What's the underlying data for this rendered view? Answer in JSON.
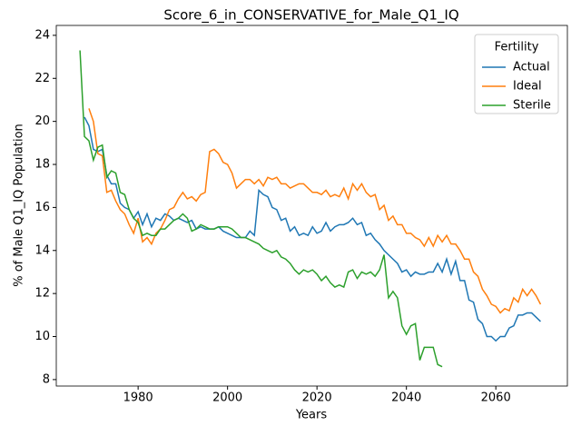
{
  "chart_data": {
    "type": "line",
    "title": "Score_6_in_CONSERVATIVE_for_Male_Q1_IQ",
    "x_label": "Years",
    "y_label": "% of Male Q1_IQ Population",
    "legend_title": "Fertility",
    "legend_position": "upper right",
    "x": [
      1967,
      1968,
      1969,
      1970,
      1971,
      1972,
      1973,
      1974,
      1975,
      1976,
      1977,
      1978,
      1979,
      1980,
      1981,
      1982,
      1983,
      1984,
      1985,
      1986,
      1987,
      1988,
      1989,
      1990,
      1991,
      1992,
      1993,
      1994,
      1995,
      1996,
      1997,
      1998,
      1999,
      2000,
      2001,
      2002,
      2003,
      2004,
      2005,
      2006,
      2007,
      2008,
      2009,
      2010,
      2011,
      2012,
      2013,
      2014,
      2015,
      2016,
      2017,
      2018,
      2019,
      2020,
      2021,
      2022,
      2023,
      2024,
      2025,
      2026,
      2027,
      2028,
      2029,
      2030,
      2031,
      2032,
      2033,
      2034,
      2035,
      2036,
      2037,
      2038,
      2039,
      2040,
      2041,
      2042,
      2043,
      2044,
      2045,
      2046,
      2047,
      2048,
      2049,
      2050,
      2051,
      2052,
      2053,
      2054,
      2055,
      2056,
      2057,
      2058,
      2059,
      2060,
      2061,
      2062,
      2063,
      2064,
      2065,
      2066,
      2067,
      2068,
      2069,
      2070
    ],
    "series": [
      {
        "name": "Actual",
        "color": "#1f77b4",
        "values": [
          null,
          20.2,
          19.8,
          18.7,
          18.6,
          18.7,
          17.5,
          17.1,
          17.1,
          16.2,
          16.0,
          15.9,
          15.5,
          15.8,
          15.2,
          15.7,
          15.1,
          15.5,
          15.4,
          15.7,
          15.6,
          15.4,
          15.5,
          15.4,
          15.3,
          15.4,
          15.0,
          15.1,
          15.0,
          15.0,
          15.0,
          15.1,
          14.9,
          14.8,
          14.7,
          14.6,
          14.6,
          14.6,
          14.9,
          14.7,
          16.8,
          16.6,
          16.5,
          16.0,
          15.9,
          15.4,
          15.5,
          14.9,
          15.1,
          14.7,
          14.8,
          14.7,
          15.1,
          14.8,
          14.9,
          15.3,
          14.9,
          15.1,
          15.2,
          15.2,
          15.3,
          15.5,
          15.2,
          15.3,
          14.7,
          14.8,
          14.5,
          14.3,
          14.0,
          13.8,
          13.6,
          13.4,
          13.0,
          13.1,
          12.8,
          13.0,
          12.9,
          12.9,
          13.0,
          13.0,
          13.4,
          13.0,
          13.6,
          12.9,
          13.5,
          12.6,
          12.6,
          11.7,
          11.6,
          10.8,
          10.6,
          10.0,
          10.0,
          9.8,
          10.0,
          10.0,
          10.4,
          10.5,
          11.0,
          11.0,
          11.1,
          11.1,
          10.9,
          10.7
        ]
      },
      {
        "name": "Ideal",
        "color": "#ff7f0e",
        "values": [
          null,
          null,
          20.6,
          20.0,
          18.5,
          18.4,
          16.7,
          16.8,
          16.3,
          15.9,
          15.7,
          15.2,
          14.8,
          15.5,
          14.4,
          14.6,
          14.3,
          14.8,
          15.0,
          15.4,
          15.9,
          16.0,
          16.4,
          16.7,
          16.4,
          16.5,
          16.3,
          16.6,
          16.7,
          18.6,
          18.7,
          18.5,
          18.1,
          18.0,
          17.6,
          16.9,
          17.1,
          17.3,
          17.3,
          17.1,
          17.3,
          17.0,
          17.4,
          17.3,
          17.4,
          17.1,
          17.1,
          16.9,
          17.0,
          17.1,
          17.1,
          16.9,
          16.7,
          16.7,
          16.6,
          16.8,
          16.5,
          16.6,
          16.5,
          16.9,
          16.4,
          17.1,
          16.8,
          17.1,
          16.7,
          16.5,
          16.6,
          15.9,
          16.1,
          15.4,
          15.6,
          15.2,
          15.2,
          14.8,
          14.8,
          14.6,
          14.5,
          14.2,
          14.6,
          14.2,
          14.7,
          14.4,
          14.7,
          14.3,
          14.3,
          14.0,
          13.6,
          13.6,
          13.0,
          12.8,
          12.2,
          11.9,
          11.5,
          11.4,
          11.1,
          11.3,
          11.2,
          11.8,
          11.6,
          12.2,
          11.9,
          12.2,
          11.9,
          11.5
        ]
      },
      {
        "name": "Sterile",
        "color": "#2ca02c",
        "values": [
          23.3,
          19.3,
          19.1,
          18.2,
          18.8,
          18.9,
          17.4,
          17.7,
          17.6,
          16.7,
          16.6,
          15.9,
          15.5,
          15.3,
          14.7,
          14.8,
          14.7,
          14.7,
          15.0,
          15.0,
          15.2,
          15.4,
          15.5,
          15.7,
          15.5,
          14.9,
          15.0,
          15.2,
          15.1,
          15.0,
          15.0,
          15.1,
          15.1,
          15.1,
          15.0,
          14.8,
          14.6,
          14.6,
          14.5,
          14.4,
          14.3,
          14.1,
          14.0,
          13.9,
          14.0,
          13.7,
          13.6,
          13.4,
          13.1,
          12.9,
          13.1,
          13.0,
          13.1,
          12.9,
          12.6,
          12.8,
          12.5,
          12.3,
          12.4,
          12.3,
          13.0,
          13.1,
          12.7,
          13.0,
          12.9,
          13.0,
          12.8,
          13.1,
          13.8,
          11.8,
          12.1,
          11.8,
          10.5,
          10.1,
          10.5,
          10.6,
          8.9,
          9.5,
          9.5,
          9.5,
          8.7,
          8.6,
          null,
          null,
          null,
          null,
          null,
          null,
          null,
          null,
          null,
          null,
          null,
          null,
          null,
          null,
          null,
          null,
          null,
          null,
          null,
          null,
          null,
          null
        ]
      }
    ],
    "xlim": [
      1961.7,
      2076
    ],
    "ylim": [
      7.7,
      24.46
    ],
    "xticks": [
      1980,
      2000,
      2020,
      2040,
      2060
    ],
    "yticks": [
      8,
      10,
      12,
      14,
      16,
      18,
      20,
      22,
      24
    ]
  }
}
